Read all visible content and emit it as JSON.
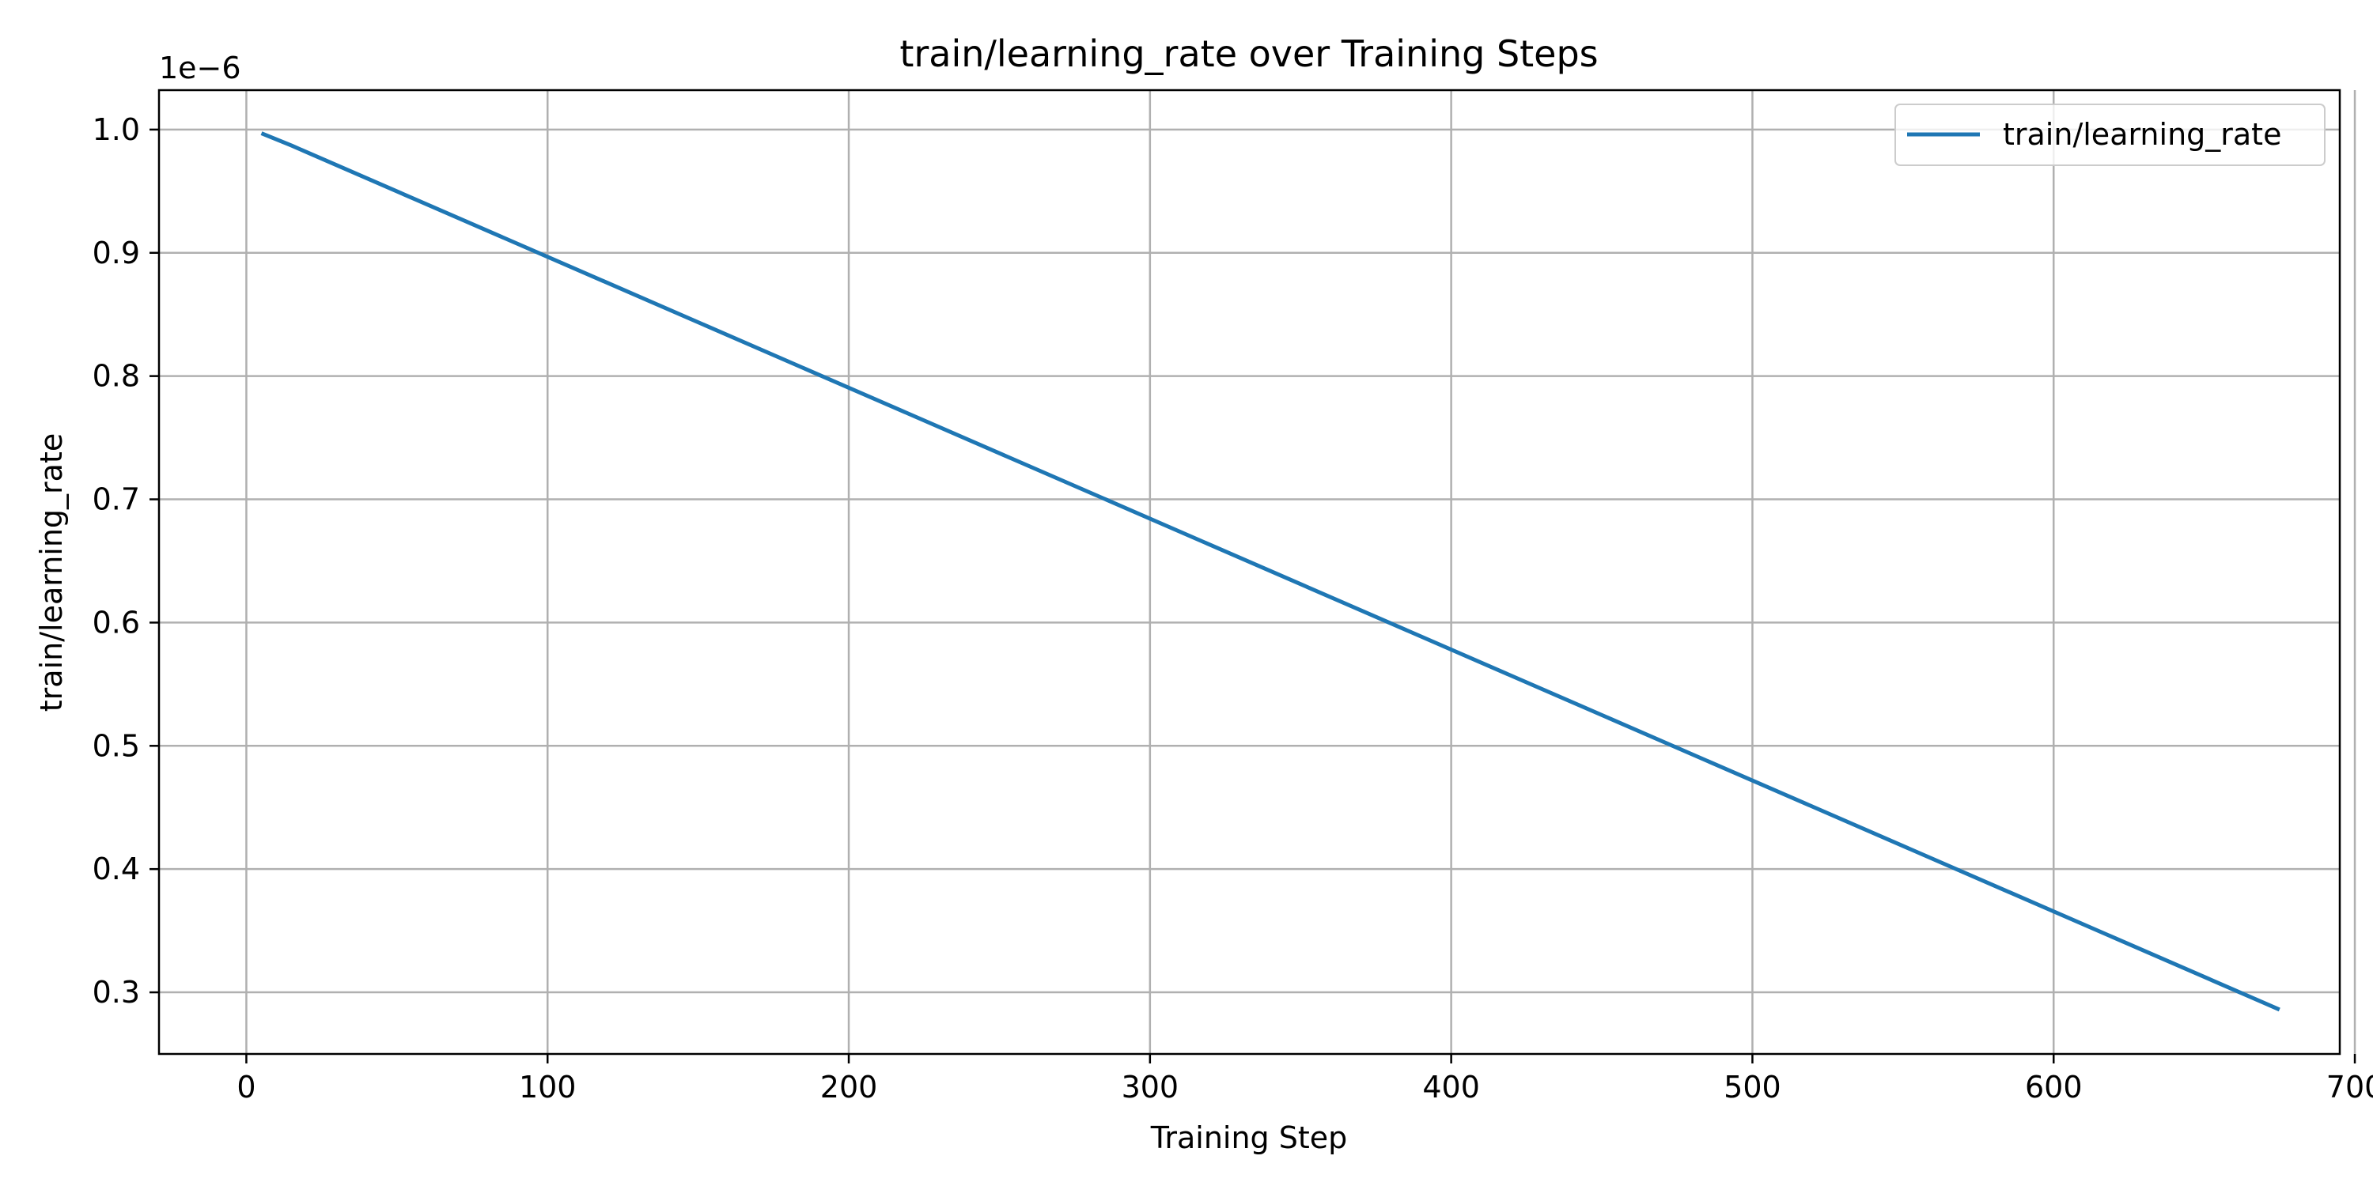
{
  "chart_data": {
    "type": "line",
    "title": "train/learning_rate over Training Steps",
    "xlabel": "Training Step",
    "ylabel": "train/learning_rate",
    "y_scale_label": "1e−6",
    "xlim": [
      -29,
      695
    ],
    "ylim": [
      0.25,
      1.032
    ],
    "x_ticks": [
      0,
      100,
      200,
      300,
      400,
      500,
      600,
      700
    ],
    "x_tick_labels": [
      "0",
      "100",
      "200",
      "300",
      "400",
      "500",
      "600",
      "700"
    ],
    "y_ticks": [
      0.3,
      0.4,
      0.5,
      0.6,
      0.7,
      0.8,
      0.9,
      1.0
    ],
    "y_tick_labels": [
      "0.3",
      "0.4",
      "0.5",
      "0.6",
      "0.7",
      "0.8",
      "0.9",
      "1.0"
    ],
    "grid": true,
    "legend_position": "top-right",
    "series": [
      {
        "name": "train/learning_rate",
        "color": "#1f77b4",
        "x": [
          5,
          15,
          675
        ],
        "y": [
          0.997,
          0.987,
          0.286
        ]
      }
    ]
  }
}
